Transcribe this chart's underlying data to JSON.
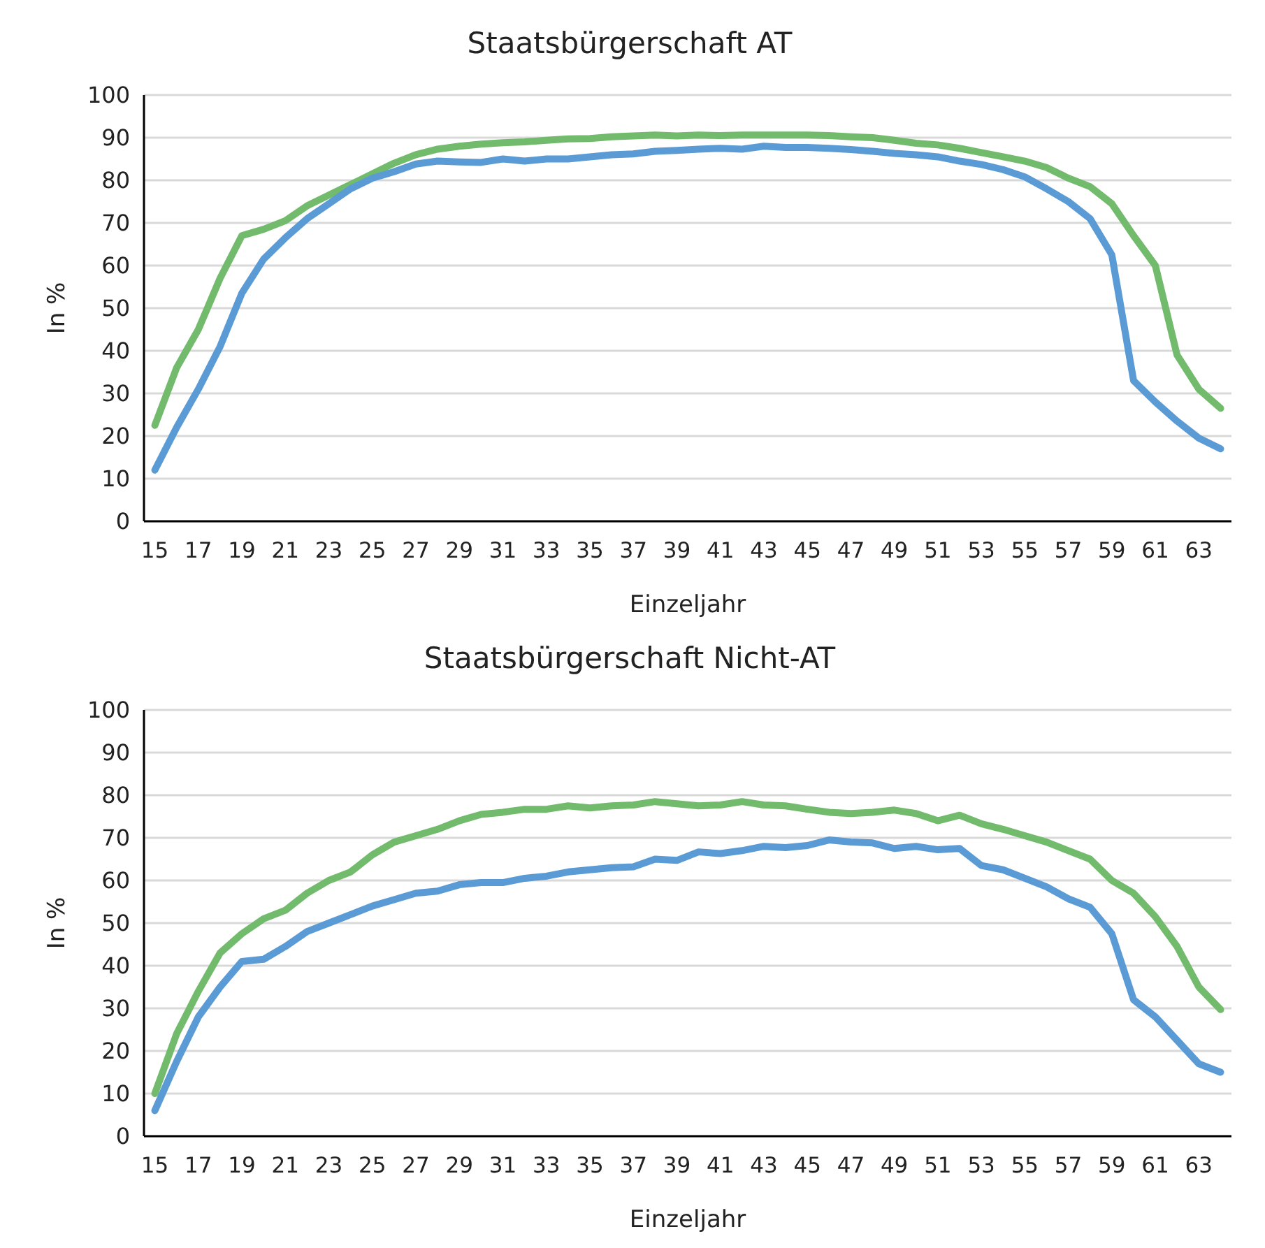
{
  "chart_data": [
    {
      "type": "line",
      "title": "Staatsbürgerschaft AT",
      "xlabel": "Einzeljahr",
      "ylabel": "In %",
      "categories": [
        "15",
        null,
        "17",
        null,
        "19",
        null,
        "21",
        null,
        "23",
        null,
        "25",
        null,
        "27",
        null,
        "29",
        null,
        "31",
        null,
        "33",
        null,
        "35",
        null,
        "37",
        null,
        "39",
        null,
        "41",
        null,
        "43",
        null,
        "45",
        null,
        "47",
        null,
        "49",
        null,
        "51",
        null,
        "53",
        null,
        "55",
        null,
        "57",
        null,
        "59",
        null,
        "61",
        null,
        "63",
        null
      ],
      "ylim": [
        0,
        100
      ],
      "yticks": [
        0,
        10,
        20,
        30,
        40,
        50,
        60,
        70,
        80,
        90,
        100
      ],
      "grid": "y",
      "marker": "none",
      "line_style": "solid",
      "series": [
        {
          "color": "#72bb6c",
          "values": [
            22.5,
            36,
            45,
            57,
            67,
            68.5,
            70.5,
            74,
            76.5,
            79,
            81.5,
            84,
            86,
            87.3,
            88,
            88.5,
            88.8,
            89,
            89.4,
            89.7,
            89.8,
            90.2,
            90.4,
            90.6,
            90.4,
            90.6,
            90.5,
            90.6,
            90.6,
            90.6,
            90.6,
            90.5,
            90.2,
            90,
            89.4,
            88.7,
            88.3,
            87.5,
            86.5,
            85.5,
            84.5,
            83,
            80.5,
            78.5,
            74.5,
            67,
            60,
            39,
            31,
            26.5
          ]
        },
        {
          "color": "#5b9bd5",
          "values": [
            12,
            22,
            31,
            41,
            53.5,
            61.5,
            66.5,
            71,
            74.5,
            78,
            80.5,
            82,
            83.8,
            84.5,
            84.3,
            84.2,
            85,
            84.5,
            85,
            85,
            85.5,
            86,
            86.2,
            86.8,
            87,
            87.3,
            87.5,
            87.3,
            88,
            87.7,
            87.7,
            87.5,
            87.2,
            86.8,
            86.3,
            86,
            85.5,
            84.5,
            83.7,
            82.5,
            80.8,
            78,
            75,
            71,
            62.5,
            33,
            28,
            23.5,
            19.5,
            17
          ]
        }
      ]
    },
    {
      "type": "line",
      "title": "Staatsbürgerschaft Nicht-AT",
      "xlabel": "Einzeljahr",
      "ylabel": "In %",
      "categories": [
        "15",
        null,
        "17",
        null,
        "19",
        null,
        "21",
        null,
        "23",
        null,
        "25",
        null,
        "27",
        null,
        "29",
        null,
        "31",
        null,
        "33",
        null,
        "35",
        null,
        "37",
        null,
        "39",
        null,
        "41",
        null,
        "43",
        null,
        "45",
        null,
        "47",
        null,
        "49",
        null,
        "51",
        null,
        "53",
        null,
        "55",
        null,
        "57",
        null,
        "59",
        null,
        "61",
        null,
        "63",
        null
      ],
      "ylim": [
        0,
        100
      ],
      "yticks": [
        0,
        10,
        20,
        30,
        40,
        50,
        60,
        70,
        80,
        90,
        100
      ],
      "grid": "y",
      "marker": "none",
      "line_style": "solid",
      "series": [
        {
          "color": "#72bb6c",
          "values": [
            10,
            24,
            34,
            43,
            47.5,
            51,
            53,
            57,
            60,
            62,
            66,
            69,
            70.5,
            72,
            74,
            75.5,
            76,
            76.7,
            76.7,
            77.5,
            77,
            77.5,
            77.7,
            78.5,
            78,
            77.5,
            77.7,
            78.5,
            77.7,
            77.5,
            76.7,
            76,
            75.7,
            76,
            76.5,
            75.7,
            74,
            75.3,
            73.3,
            72,
            70.5,
            69,
            67,
            65,
            60,
            57,
            51.5,
            44.5,
            35,
            29.7
          ]
        },
        {
          "color": "#5b9bd5",
          "values": [
            6,
            17.5,
            28,
            35,
            41,
            41.5,
            44.5,
            48,
            50,
            52,
            54,
            55.5,
            57,
            57.5,
            59,
            59.5,
            59.5,
            60.5,
            61,
            62,
            62.5,
            63,
            63.2,
            65,
            64.7,
            66.7,
            66.3,
            67,
            68,
            67.7,
            68.2,
            69.5,
            69,
            68.8,
            67.5,
            68,
            67.2,
            67.5,
            63.5,
            62.5,
            60.5,
            58.5,
            55.7,
            53.7,
            47.5,
            32,
            28,
            22.5,
            17,
            15
          ]
        }
      ]
    }
  ]
}
